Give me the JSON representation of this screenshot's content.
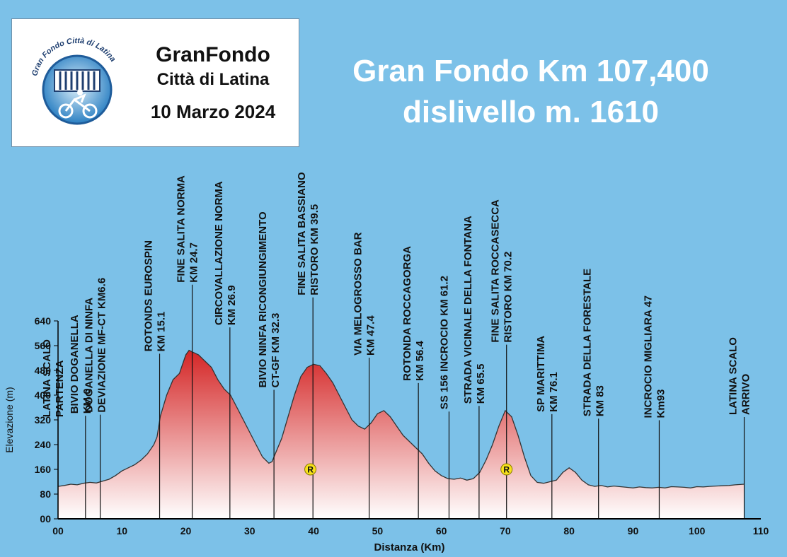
{
  "logo": {
    "arc_text": "Gran Fondo Città di Latina",
    "line1": "GranFondo",
    "line2": "Città di Latina",
    "line3": "10 Marzo 2024"
  },
  "title": {
    "line1": "Gran Fondo Km 107,400",
    "line2": "dislivello m. 1610"
  },
  "colors": {
    "background": "#7cc1e8",
    "fill_top": "#d42525",
    "fill_bottom": "#ffffff",
    "profile_line": "#333333",
    "ristoro_marker": "#f7e11b"
  },
  "chart_data": {
    "type": "area",
    "xlabel": "Distanza (Km)",
    "ylabel": "Elevazione (m)",
    "xlim": [
      0,
      110
    ],
    "ylim": [
      0,
      640
    ],
    "xticks": [
      0,
      10,
      20,
      30,
      40,
      50,
      60,
      70,
      80,
      90,
      100,
      110
    ],
    "xtick_labels": [
      "00",
      "10",
      "20",
      "30",
      "40",
      "50",
      "60",
      "70",
      "80",
      "90",
      "100",
      "110"
    ],
    "yticks": [
      0,
      80,
      160,
      240,
      320,
      400,
      480,
      560,
      640
    ],
    "ytick_labels": [
      "00",
      "80",
      "160",
      "240",
      "320",
      "400",
      "480",
      "560",
      "640"
    ],
    "profile": {
      "x": [
        0,
        1,
        2,
        3,
        4,
        5,
        6,
        7,
        8,
        9,
        10,
        11,
        12,
        13,
        14,
        15,
        15.5,
        16,
        17,
        18,
        19,
        20,
        20.5,
        21,
        22,
        23,
        24,
        25,
        26,
        27,
        28,
        29,
        30,
        31,
        32,
        33,
        33.5,
        34,
        35,
        36,
        37,
        38,
        39,
        40,
        41,
        42,
        43,
        44,
        45,
        46,
        47,
        48,
        49,
        50,
        51,
        52,
        53,
        54,
        55,
        56,
        57,
        58,
        59,
        60,
        61,
        62,
        63,
        64,
        65,
        66,
        67,
        68,
        69,
        70,
        71,
        72,
        73,
        74,
        75,
        76,
        77,
        78,
        79,
        80,
        81,
        82,
        83,
        84,
        85,
        86,
        87,
        88,
        89,
        90,
        91,
        92,
        93,
        94,
        95,
        96,
        97,
        98,
        99,
        100,
        101,
        102,
        103,
        104,
        105,
        106,
        107.4
      ],
      "y": [
        105,
        108,
        112,
        110,
        115,
        118,
        116,
        122,
        128,
        140,
        155,
        165,
        175,
        190,
        210,
        240,
        265,
        330,
        400,
        450,
        470,
        530,
        545,
        540,
        530,
        510,
        490,
        450,
        420,
        400,
        360,
        320,
        280,
        240,
        200,
        180,
        185,
        210,
        260,
        330,
        400,
        460,
        490,
        500,
        495,
        470,
        440,
        400,
        360,
        320,
        300,
        290,
        310,
        340,
        350,
        330,
        300,
        270,
        250,
        230,
        210,
        180,
        155,
        140,
        130,
        128,
        132,
        125,
        130,
        150,
        190,
        240,
        300,
        350,
        330,
        270,
        200,
        140,
        118,
        115,
        120,
        125,
        150,
        165,
        150,
        125,
        110,
        105,
        108,
        103,
        106,
        104,
        102,
        100,
        103,
        101,
        100,
        102,
        100,
        104,
        103,
        102,
        100,
        104,
        103,
        105,
        106,
        107,
        108,
        110,
        112
      ]
    },
    "waypoints": [
      {
        "km": 0,
        "lines": [
          "LATINA SCALO",
          "PARTENZA"
        ]
      },
      {
        "km": 4.3,
        "lines": [
          "BIVIO DOGANELLA",
          "KM 0"
        ]
      },
      {
        "km": 6.6,
        "lines": [
          "DOGANELLA DI NINFA",
          "DEVIAZIONE MF-CT KM6.6"
        ]
      },
      {
        "km": 15.9,
        "lines": [
          "ROTONDS EUROSPIN",
          "KM 15.1"
        ]
      },
      {
        "km": 21.0,
        "lines": [
          "FINE SALITA NORMA",
          "KM 24.7"
        ]
      },
      {
        "km": 26.9,
        "lines": [
          "CIRCOVALLAZIONE NORMA",
          "KM 26.9"
        ]
      },
      {
        "km": 33.8,
        "lines": [
          "BIVIO NINFA RICONGIUNGIMENTO",
          "CT-GF  KM 32.3"
        ]
      },
      {
        "km": 39.9,
        "lines": [
          "FINE SALITA BASSIANO",
          "RISTORO  KM 39.5"
        ]
      },
      {
        "km": 48.7,
        "lines": [
          "VIA MELOGROSSO BAR",
          "KM 47.4"
        ]
      },
      {
        "km": 56.4,
        "lines": [
          "ROTONDA  ROCCAGORGA",
          "KM 56.4"
        ]
      },
      {
        "km": 61.2,
        "lines": [
          "SS 156 INCROCIO KM 61.2"
        ]
      },
      {
        "km": 65.9,
        "lines": [
          "STRADA VICINALE DELLA FONTANA",
          "KM 65.5"
        ]
      },
      {
        "km": 70.2,
        "lines": [
          "FINE SALITA  ROCCASECCA",
          "RISTORO KM 70.2"
        ]
      },
      {
        "km": 77.3,
        "lines": [
          "SP MARITTIMA",
          "KM 76.1"
        ]
      },
      {
        "km": 84.6,
        "lines": [
          "STRADA DELLA FORESTALE",
          "KM 83"
        ]
      },
      {
        "km": 94.1,
        "lines": [
          "INCROCIO  MIGLIARA 47",
          "Km93"
        ]
      },
      {
        "km": 107.4,
        "lines": [
          "LATINA SCALO",
          "ARRIVO"
        ]
      }
    ],
    "ristori": [
      {
        "km": 39.5,
        "elev": 160,
        "label": "R"
      },
      {
        "km": 70.2,
        "elev": 160,
        "label": "R"
      }
    ]
  }
}
